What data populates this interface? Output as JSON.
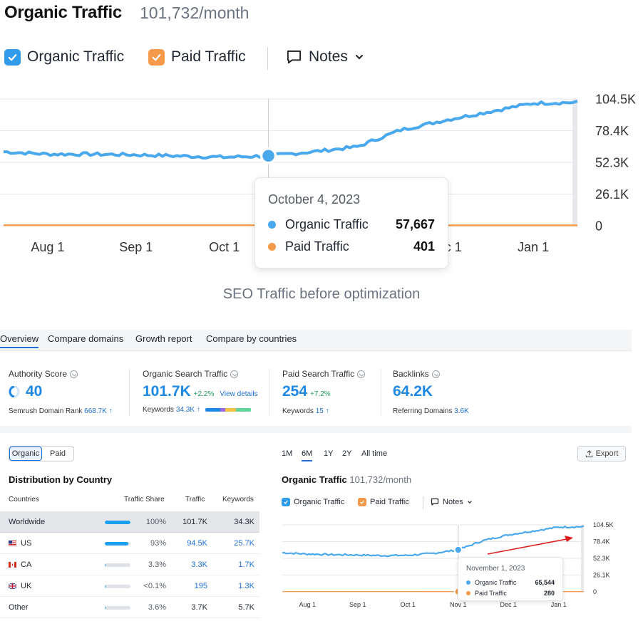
{
  "header": {
    "title": "Organic Traffic",
    "value": "101,732/month"
  },
  "legend": {
    "organic_label": "Organic Traffic",
    "paid_label": "Paid Traffic",
    "notes_label": "Notes"
  },
  "colors": {
    "organic": "#4aa8ec",
    "paid": "#f59a4a",
    "accent_blue": "#1e88e5",
    "checkbox_blue": "#2f9be9",
    "checkbox_orange": "#f59a4a"
  },
  "chart_data": [
    {
      "type": "line",
      "x": [
        "Jul 15",
        "Aug 1",
        "Aug 15",
        "Sep 1",
        "Sep 15",
        "Oct 1",
        "Oct 4",
        "Oct 15",
        "Nov 1",
        "Nov 15",
        "Dec 1",
        "Dec 15",
        "Jan 1",
        "Jan 15"
      ],
      "series": [
        {
          "name": "Organic Traffic",
          "values": [
            61000,
            59000,
            59000,
            58500,
            57500,
            56500,
            57667,
            61000,
            65000,
            79000,
            87000,
            94000,
            101000,
            101732
          ]
        },
        {
          "name": "Paid Traffic",
          "values": [
            400,
            400,
            400,
            400,
            400,
            401,
            401,
            400,
            280,
            300,
            300,
            300,
            300,
            300
          ]
        }
      ],
      "xticks": [
        "Aug 1",
        "Sep 1",
        "Oct 1",
        "Nov 1",
        "Dec 1",
        "Jan 1"
      ],
      "yticks": [
        "0",
        "26.1K",
        "52.3K",
        "78.4K",
        "104.5K"
      ],
      "ylim": [
        0,
        104500
      ],
      "grid": true,
      "tooltip": {
        "date": "October 4, 2023",
        "rows": [
          {
            "label": "Organic Traffic",
            "value": "57,667"
          },
          {
            "label": "Paid Traffic",
            "value": "401"
          }
        ]
      }
    },
    {
      "type": "line",
      "x": [
        "Jul 15",
        "Aug 1",
        "Aug 15",
        "Sep 1",
        "Sep 15",
        "Oct 1",
        "Oct 15",
        "Nov 1",
        "Nov 15",
        "Dec 1",
        "Dec 15",
        "Jan 1",
        "Jan 15"
      ],
      "series": [
        {
          "name": "Organic Traffic",
          "values": [
            61000,
            59000,
            58000,
            57500,
            56500,
            57000,
            60000,
            65544,
            80000,
            89000,
            95000,
            101000,
            101732
          ]
        },
        {
          "name": "Paid Traffic",
          "values": [
            400,
            400,
            400,
            400,
            400,
            400,
            380,
            280,
            300,
            300,
            300,
            300,
            300
          ]
        }
      ],
      "xticks": [
        "Aug 1",
        "Sep 1",
        "Oct 1",
        "Nov 1",
        "Dec 1",
        "Jan 1"
      ],
      "yticks": [
        "0",
        "26.1K",
        "52.3K",
        "78.4K",
        "104.5K"
      ],
      "ylim": [
        0,
        104500
      ],
      "grid": true,
      "tooltip": {
        "date": "November 1, 2023",
        "rows": [
          {
            "label": "Organic Traffic",
            "value": "65,544"
          },
          {
            "label": "Paid Traffic",
            "value": "280"
          }
        ]
      }
    }
  ],
  "caption": "SEO Traffic before optimization",
  "tabs": [
    "Overview",
    "Compare domains",
    "Growth report",
    "Compare by countries"
  ],
  "metrics": [
    {
      "label": "Authority Score",
      "value": "40",
      "delta": "",
      "link": "",
      "sub_label": "Semrush Domain Rank",
      "sub_value": "668.7K",
      "sub_suffix": "↑"
    },
    {
      "label": "Organic Search Traffic",
      "value": "101.7K",
      "delta": "+2.2%",
      "link": "View details",
      "sub_label": "Keywords",
      "sub_value": "34.3K",
      "sub_suffix": "↑"
    },
    {
      "label": "Paid Search Traffic",
      "value": "254",
      "delta": "+7.2%",
      "link": "",
      "sub_label": "Keywords",
      "sub_value": "15",
      "sub_suffix": "↑"
    },
    {
      "label": "Backlinks",
      "value": "64.2K",
      "delta": "",
      "link": "",
      "sub_label": "Referring Domains",
      "sub_value": "3.6K",
      "sub_suffix": ""
    }
  ],
  "segment": {
    "organic": "Organic",
    "paid": "Paid"
  },
  "distribution": {
    "title": "Distribution by Country",
    "headers": [
      "Countries",
      "Traffic Share",
      "Traffic",
      "Keywords"
    ],
    "rows": [
      {
        "name": "Worldwide",
        "share": "100%",
        "share_value": 1.0,
        "traffic": "101.7K",
        "keywords": "34.3K",
        "flag": ""
      },
      {
        "name": "US",
        "share": "93%",
        "share_value": 0.93,
        "traffic": "94.5K",
        "keywords": "25.7K",
        "flag": "us"
      },
      {
        "name": "CA",
        "share": "3.3%",
        "share_value": 0.033,
        "traffic": "3.3K",
        "keywords": "1.7K",
        "flag": "ca"
      },
      {
        "name": "UK",
        "share": "<0.1%",
        "share_value": 0.001,
        "traffic": "195",
        "keywords": "1.3K",
        "flag": "uk"
      },
      {
        "name": "Other",
        "share": "3.6%",
        "share_value": 0.036,
        "traffic": "3.7K",
        "keywords": "5.7K",
        "flag": ""
      }
    ]
  },
  "periods": [
    "1M",
    "6M",
    "1Y",
    "2Y",
    "All time"
  ],
  "active_period": "6M",
  "export_label": "Export",
  "mini": {
    "title": "Organic Traffic",
    "value": "101,732/month",
    "organic_label": "Organic Traffic",
    "paid_label": "Paid Traffic",
    "notes_label": "Notes"
  }
}
